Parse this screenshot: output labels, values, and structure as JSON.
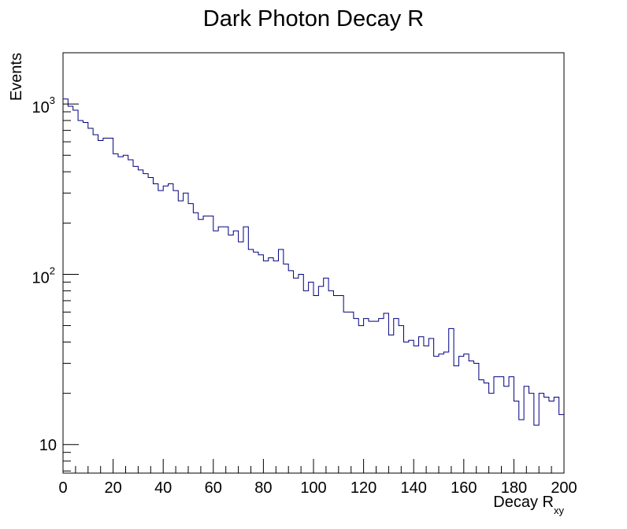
{
  "chart_data": {
    "type": "histogram",
    "title": "Dark Photon Decay R",
    "xlabel": "Decay R",
    "xlabel_subscript": "xy",
    "ylabel": "Events",
    "xlim": [
      0,
      200
    ],
    "ylim": [
      6.8,
      2000
    ],
    "log_y": true,
    "grid": false,
    "line_color": "#00007f",
    "bin_width": 2,
    "x_ticks": [
      "0",
      "20",
      "40",
      "60",
      "80",
      "100",
      "120",
      "140",
      "160",
      "180",
      "200"
    ],
    "y_ticks": [
      {
        "base": "10",
        "exp": "3",
        "value": 1000
      },
      {
        "base": "10",
        "exp": "2",
        "value": 100
      },
      {
        "base": "10",
        "exp": "",
        "value": 10
      }
    ],
    "values": [
      1070,
      970,
      920,
      800,
      780,
      720,
      660,
      610,
      630,
      630,
      510,
      490,
      500,
      470,
      430,
      410,
      390,
      370,
      340,
      310,
      330,
      340,
      310,
      270,
      300,
      260,
      230,
      210,
      220,
      220,
      180,
      190,
      190,
      170,
      180,
      155,
      190,
      140,
      135,
      130,
      120,
      125,
      120,
      140,
      115,
      105,
      95,
      100,
      80,
      90,
      75,
      85,
      95,
      80,
      75,
      75,
      60,
      60,
      55,
      50,
      55,
      53,
      53,
      55,
      59,
      44,
      55,
      50,
      40,
      41,
      38,
      43,
      38,
      42,
      33,
      34,
      35,
      48,
      29,
      33,
      34,
      31,
      30,
      24,
      23,
      20,
      25,
      25,
      22,
      25,
      18,
      14,
      22,
      20,
      13,
      20,
      19,
      18,
      19,
      15
    ]
  }
}
